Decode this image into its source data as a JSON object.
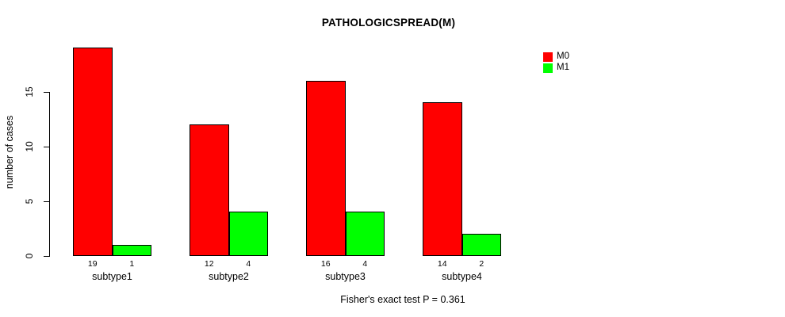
{
  "title": "PATHOLOGICSPREAD(M)",
  "y_axis": {
    "label": "number of cases",
    "ticks": [
      0,
      5,
      10,
      15
    ]
  },
  "footer": "Fisher's exact test P = 0.361",
  "legend": {
    "items": [
      {
        "label": "M0",
        "color": "#FF0000"
      },
      {
        "label": "M1",
        "color": "#00FF00"
      }
    ]
  },
  "chart_data": {
    "type": "bar",
    "title": "PATHOLOGICSPREAD(M)",
    "categories": [
      "subtype1",
      "subtype2",
      "subtype3",
      "subtype4"
    ],
    "series": [
      {
        "name": "M0",
        "color": "#FF0000",
        "values": [
          19,
          12,
          16,
          14
        ]
      },
      {
        "name": "M1",
        "color": "#00FF00",
        "values": [
          1,
          4,
          4,
          2
        ]
      }
    ],
    "xlabel": "",
    "ylabel": "number of cases",
    "yticks": [
      0,
      5,
      10,
      15
    ],
    "ylim": [
      0,
      19.8
    ],
    "grid": false,
    "bar_value_labels": true,
    "legend_position": "inside-top-right",
    "annotation": "Fisher's exact test P = 0.361"
  }
}
